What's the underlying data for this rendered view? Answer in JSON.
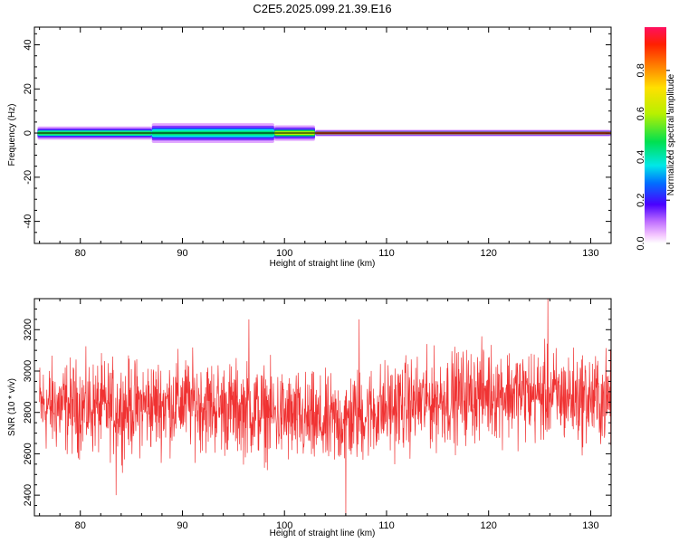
{
  "title": "C2E5.2025.099.21.39.E16",
  "chart_data": [
    {
      "type": "heatmap",
      "xlabel": "Height of straight line (km)",
      "ylabel": "Frequency (Hz)",
      "xlim": [
        75.5,
        132
      ],
      "ylim": [
        -50,
        48
      ],
      "x_ticks": [
        80,
        90,
        100,
        110,
        120,
        130
      ],
      "y_ticks": [
        -40,
        -20,
        0,
        20,
        40
      ],
      "grid": false,
      "signal": {
        "center_frequency": 0,
        "segments": [
          {
            "x": [
              75.8,
              87
            ],
            "half_width_hz": 3,
            "core_level": 0.5
          },
          {
            "x": [
              87,
              99
            ],
            "half_width_hz": 4.5,
            "core_level": 0.45
          },
          {
            "x": [
              99,
              103
            ],
            "half_width_hz": 3.5,
            "core_level": 0.6
          },
          {
            "x": [
              103,
              132
            ],
            "half_width_hz": 1.5,
            "core_level": 0.95
          }
        ]
      },
      "colorbar": {
        "label": "Normalized spectral amplitude",
        "range": [
          0,
          1
        ],
        "ticks": [
          0.0,
          0.2,
          0.4,
          0.6,
          0.8
        ]
      }
    },
    {
      "type": "line",
      "xlabel": "Height of straight line (km)",
      "ylabel": "SNR (10 * v/v)",
      "xlim": [
        75.5,
        132
      ],
      "ylim": [
        2300,
        3350
      ],
      "x_ticks": [
        80,
        90,
        100,
        110,
        120,
        130
      ],
      "y_ticks": [
        2400,
        2600,
        2800,
        3000,
        3200
      ],
      "grid": false,
      "series": [
        {
          "color": "#f03232",
          "sample_count": 1800,
          "baseline": [
            {
              "x": 76,
              "y": 2830
            },
            {
              "x": 84,
              "y": 2820
            },
            {
              "x": 90,
              "y": 2850
            },
            {
              "x": 98,
              "y": 2800
            },
            {
              "x": 104,
              "y": 2740
            },
            {
              "x": 110,
              "y": 2820
            },
            {
              "x": 120,
              "y": 2900
            },
            {
              "x": 126,
              "y": 2880
            },
            {
              "x": 132,
              "y": 2860
            }
          ],
          "noise_amplitude": 110,
          "spikes": [
            {
              "x": 106,
              "y": 2300
            },
            {
              "x": 125.8,
              "y": 3350
            },
            {
              "x": 107.3,
              "y": 3250
            },
            {
              "x": 83.5,
              "y": 2400
            },
            {
              "x": 96.5,
              "y": 3250
            }
          ]
        }
      ]
    }
  ]
}
